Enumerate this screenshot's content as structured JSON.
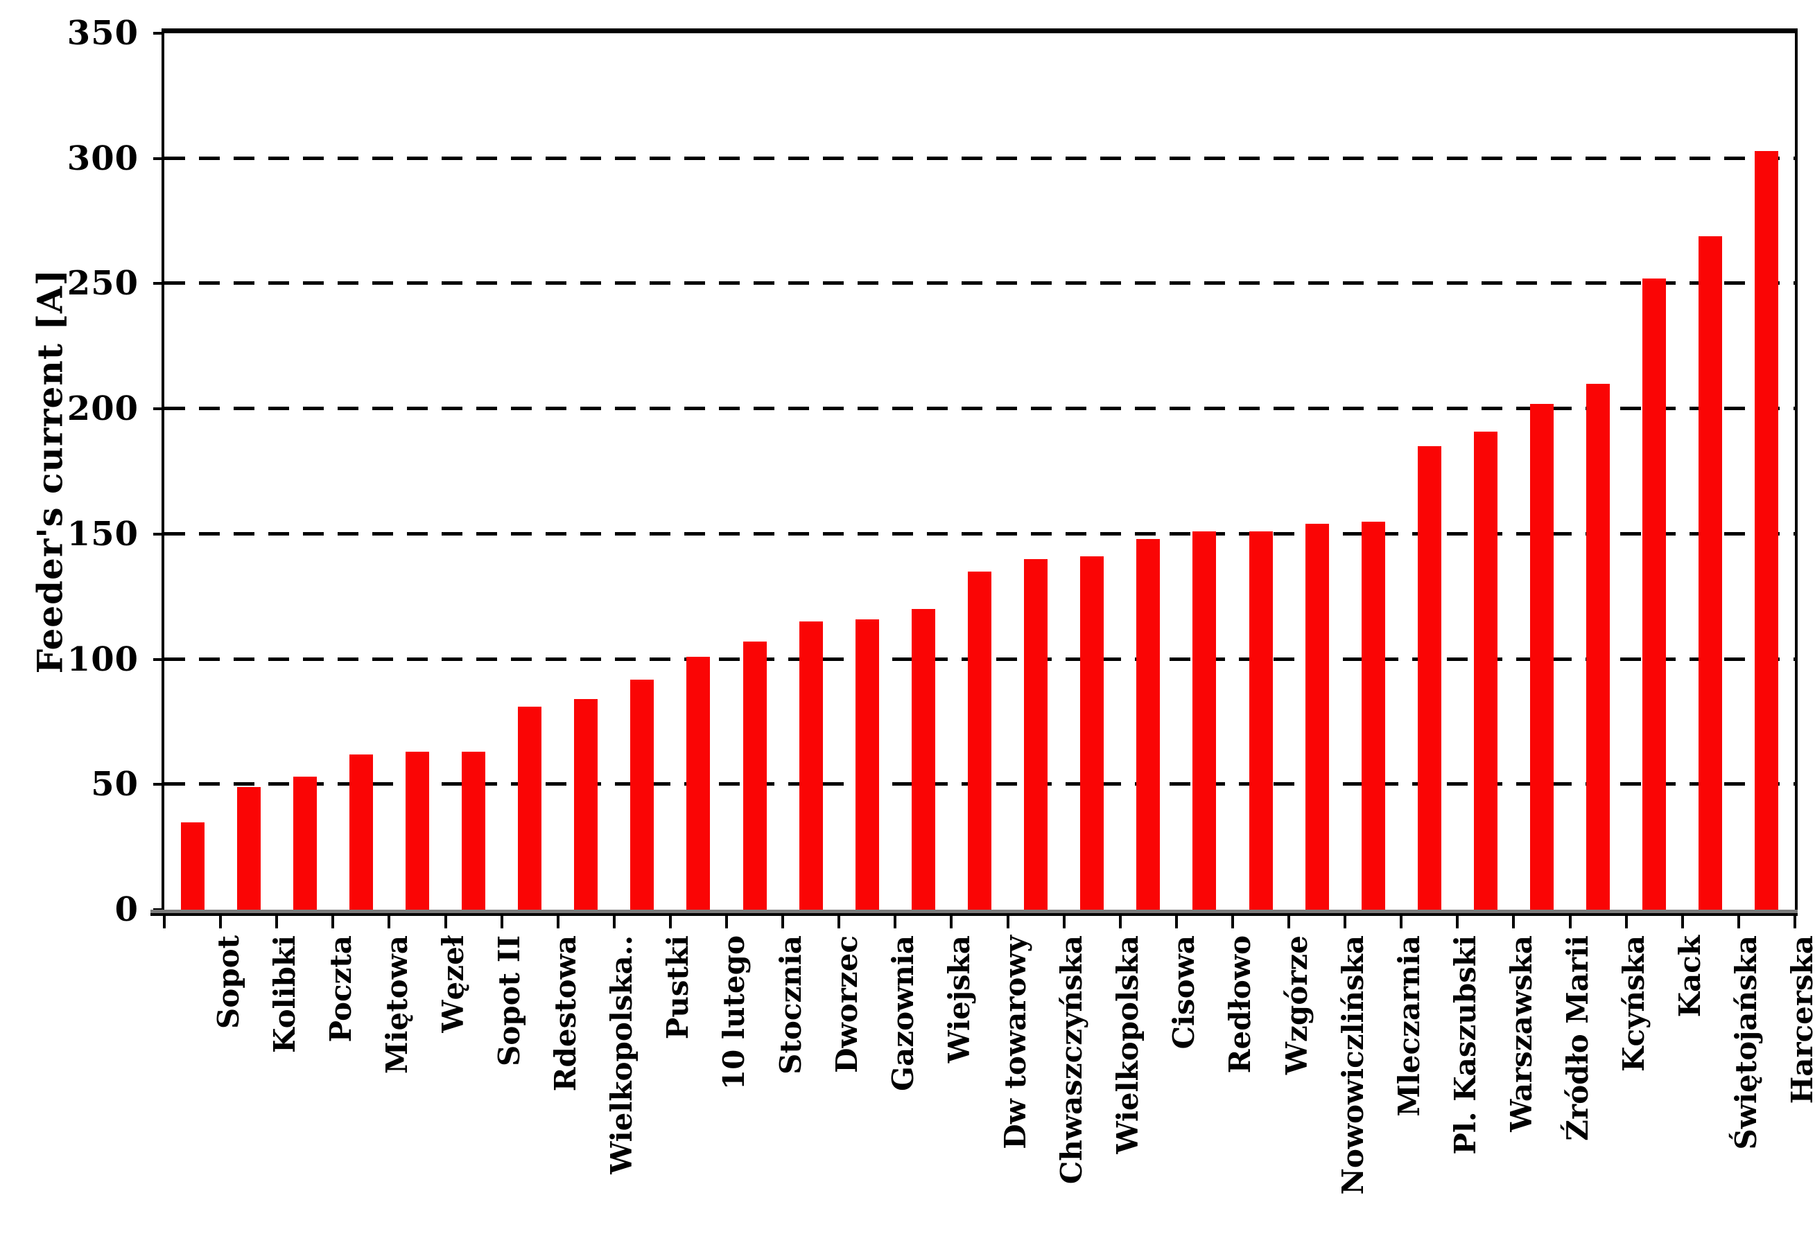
{
  "figure": {
    "background": "#ffffff",
    "axis_color": "#000000",
    "grid_color": "#000000",
    "baseline_gray": "#7b7b7b"
  },
  "chart_data": {
    "type": "bar",
    "title": "",
    "xlabel": "",
    "ylabel": "Feeder's current [A]",
    "ylim": [
      0,
      350
    ],
    "yticks": [
      0,
      50,
      100,
      150,
      200,
      250,
      300,
      350
    ],
    "grid": "horizontal dashed lines every 50 A",
    "legend_position": "none",
    "bar_color": "#fa0505",
    "categories": [
      "Sopot",
      "Kolibki",
      "Poczta",
      "Miętowa",
      "Węzeł",
      "Sopot II",
      "Rdestowa",
      "Wielkopolska..",
      "Pustki",
      "10 lutego",
      "Stocznia",
      "Dworzec",
      "Gazownia",
      "Wiejska",
      "Dw towarowy",
      "Chwaszczyńska",
      "Wielkopolska",
      "Cisowa",
      "Redłowo",
      "Wzgórze",
      "Nowowiczlińska",
      "Mleczarnia",
      "Pl. Kaszubski",
      "Warszawska",
      "Źródło Marii",
      "Kcyńska",
      "Kack",
      "Świętojańska",
      "Harcerska"
    ],
    "values": [
      35,
      49,
      53,
      62,
      63,
      63,
      81,
      84,
      92,
      101,
      107,
      115,
      116,
      120,
      135,
      140,
      141,
      148,
      151,
      151,
      154,
      155,
      185,
      191,
      202,
      210,
      252,
      269,
      303
    ]
  }
}
